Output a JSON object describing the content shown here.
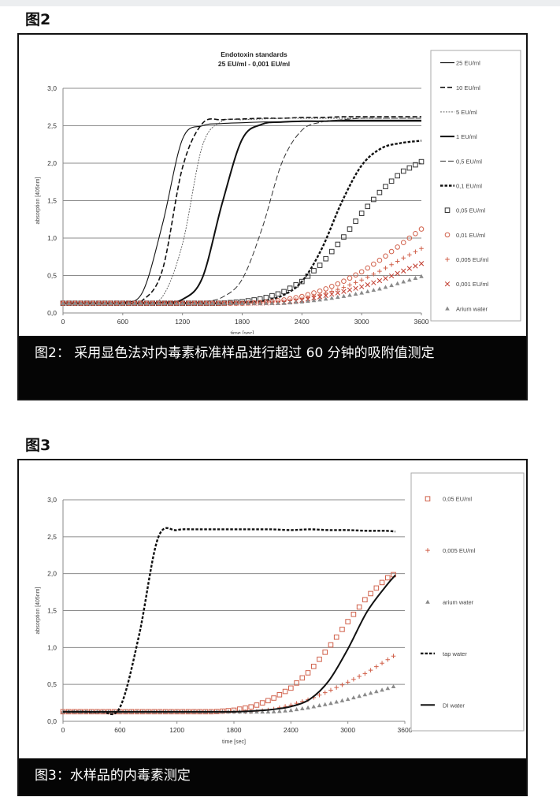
{
  "figures": [
    {
      "label": "图2",
      "caption": "图2： 采用显色法对内毒素标准样品进行超过 60 分钟的吸附值测定"
    },
    {
      "label": "图3",
      "caption": "图3：水样品的内毒素测定"
    }
  ],
  "chart_data": [
    {
      "type": "line",
      "title": "Endotoxin standards",
      "subtitle": "25 EU/ml - 0,001 EU/ml",
      "xlabel": "time [sec]",
      "ylabel": "absorption [405nm]",
      "xlim": [
        0,
        3600
      ],
      "ylim": [
        0,
        3.0
      ],
      "xticks": [
        "0",
        "600",
        "1200",
        "1800",
        "2400",
        "3000",
        "3600"
      ],
      "yticks": [
        "0,0",
        "0,5",
        "1,0",
        "1,5",
        "2,0",
        "2,5",
        "3,0"
      ],
      "grid": "horizontal",
      "legend": "right",
      "x": [
        0,
        200,
        400,
        600,
        800,
        1000,
        1200,
        1400,
        1600,
        1800,
        2000,
        2200,
        2400,
        2600,
        2800,
        3000,
        3200,
        3400,
        3600
      ],
      "series": [
        {
          "name": "25 EU/ml",
          "style": "solid-thin",
          "color": "#111111",
          "values": [
            0.13,
            0.13,
            0.13,
            0.14,
            0.28,
            1.19,
            2.32,
            2.5,
            2.53,
            2.54,
            2.55,
            2.55,
            2.56,
            2.56,
            2.56,
            2.56,
            2.56,
            2.56,
            2.56
          ]
        },
        {
          "name": "10 EU/ml",
          "style": "dashed",
          "color": "#111111",
          "values": [
            0.13,
            0.13,
            0.13,
            0.13,
            0.17,
            0.58,
            1.94,
            2.53,
            2.58,
            2.59,
            2.6,
            2.6,
            2.61,
            2.61,
            2.62,
            2.62,
            2.62,
            2.62,
            2.62
          ]
        },
        {
          "name": "5 EU/ml",
          "style": "dotted-thin",
          "color": "#555555",
          "values": [
            0.13,
            0.13,
            0.13,
            0.13,
            0.14,
            0.22,
            0.92,
            2.23,
            2.56,
            2.58,
            2.59,
            2.6,
            2.6,
            2.6,
            2.6,
            2.6,
            2.6,
            2.6,
            2.6
          ]
        },
        {
          "name": "1 EU/ml",
          "style": "solid-thick",
          "color": "#111111",
          "values": [
            0.13,
            0.13,
            0.13,
            0.13,
            0.13,
            0.14,
            0.18,
            0.47,
            1.47,
            2.32,
            2.52,
            2.55,
            2.56,
            2.56,
            2.57,
            2.57,
            2.57,
            2.57,
            2.57
          ]
        },
        {
          "name": "0,5 EU/ml",
          "style": "dashed-thin",
          "color": "#333333",
          "values": [
            0.13,
            0.13,
            0.13,
            0.13,
            0.13,
            0.13,
            0.14,
            0.15,
            0.21,
            0.45,
            1.13,
            2.01,
            2.44,
            2.55,
            2.58,
            2.6,
            2.6,
            2.6,
            2.6
          ]
        },
        {
          "name": "0,1 EU/ml",
          "style": "dotted-thick",
          "color": "#111111",
          "values": [
            0.13,
            0.13,
            0.13,
            0.13,
            0.13,
            0.13,
            0.13,
            0.13,
            0.13,
            0.14,
            0.16,
            0.23,
            0.42,
            0.86,
            1.48,
            1.97,
            2.2,
            2.27,
            2.3
          ]
        },
        {
          "name": "0,05 EU/ml",
          "style": "marker-square",
          "color": "#333333",
          "values": [
            0.13,
            0.13,
            0.13,
            0.13,
            0.13,
            0.13,
            0.13,
            0.13,
            0.13,
            0.15,
            0.19,
            0.27,
            0.42,
            0.66,
            0.98,
            1.33,
            1.64,
            1.88,
            2.02
          ]
        },
        {
          "name": "0,01 EU/ml",
          "style": "marker-circle",
          "color": "#d0604a",
          "values": [
            0.13,
            0.13,
            0.13,
            0.13,
            0.13,
            0.13,
            0.13,
            0.13,
            0.13,
            0.13,
            0.14,
            0.17,
            0.22,
            0.3,
            0.41,
            0.55,
            0.72,
            0.92,
            1.12
          ]
        },
        {
          "name": "0,005 EU/ml",
          "style": "marker-plus",
          "color": "#d0604a",
          "values": [
            0.13,
            0.13,
            0.13,
            0.13,
            0.13,
            0.13,
            0.13,
            0.13,
            0.13,
            0.13,
            0.13,
            0.15,
            0.19,
            0.25,
            0.33,
            0.44,
            0.57,
            0.72,
            0.86
          ]
        },
        {
          "name": "0,001 EU/ml",
          "style": "marker-x",
          "color": "#c0392b",
          "values": [
            0.13,
            0.13,
            0.13,
            0.13,
            0.13,
            0.13,
            0.13,
            0.13,
            0.13,
            0.13,
            0.13,
            0.14,
            0.17,
            0.22,
            0.28,
            0.35,
            0.44,
            0.55,
            0.66
          ]
        },
        {
          "name": "Arium water",
          "style": "marker-triangle",
          "color": "#8a8a8a",
          "values": [
            0.13,
            0.13,
            0.13,
            0.13,
            0.13,
            0.13,
            0.13,
            0.13,
            0.13,
            0.13,
            0.13,
            0.13,
            0.15,
            0.18,
            0.22,
            0.27,
            0.33,
            0.41,
            0.49
          ]
        }
      ]
    },
    {
      "type": "line",
      "title": "",
      "subtitle": "",
      "xlabel": "time [sec]",
      "ylabel": "absorption [405nm]",
      "xlim": [
        0,
        3600
      ],
      "ylim": [
        0,
        3.0
      ],
      "xticks": [
        "0",
        "600",
        "1200",
        "1800",
        "2400",
        "3000",
        "3600"
      ],
      "yticks": [
        "0,0",
        "0,5",
        "1,0",
        "1,5",
        "2,0",
        "2,5",
        "3,0"
      ],
      "grid": "horizontal",
      "legend": "right",
      "x": [
        0,
        200,
        400,
        600,
        800,
        1000,
        1200,
        1400,
        1600,
        1800,
        2000,
        2200,
        2400,
        2600,
        2800,
        3000,
        3200,
        3400,
        3500
      ],
      "series": [
        {
          "name": "0,05 EU/ml",
          "style": "marker-square",
          "color": "#d0604a",
          "values": [
            0.13,
            0.13,
            0.13,
            0.13,
            0.13,
            0.13,
            0.13,
            0.13,
            0.13,
            0.15,
            0.2,
            0.3,
            0.45,
            0.68,
            1.0,
            1.35,
            1.68,
            1.93,
            2.0
          ]
        },
        {
          "name": "0,005 EU/ml",
          "style": "marker-plus",
          "color": "#d0604a",
          "values": [
            0.13,
            0.13,
            0.13,
            0.13,
            0.13,
            0.13,
            0.13,
            0.13,
            0.13,
            0.13,
            0.13,
            0.16,
            0.22,
            0.3,
            0.41,
            0.53,
            0.66,
            0.82,
            0.9
          ]
        },
        {
          "name": "arium water",
          "style": "marker-triangle",
          "color": "#8a8a8a",
          "values": [
            0.13,
            0.13,
            0.13,
            0.13,
            0.13,
            0.13,
            0.13,
            0.13,
            0.13,
            0.13,
            0.13,
            0.13,
            0.15,
            0.19,
            0.24,
            0.3,
            0.37,
            0.44,
            0.48
          ]
        },
        {
          "name": "tap water",
          "style": "dotted-thick",
          "color": "#111111",
          "values": [
            0.13,
            0.13,
            0.13,
            0.19,
            1.16,
            2.48,
            2.59,
            2.6,
            2.6,
            2.6,
            2.6,
            2.6,
            2.59,
            2.6,
            2.59,
            2.59,
            2.58,
            2.58,
            2.57
          ]
        },
        {
          "name": "DI water",
          "style": "solid-thick",
          "color": "#111111",
          "values": [
            0.13,
            0.13,
            0.13,
            0.13,
            0.13,
            0.13,
            0.13,
            0.13,
            0.13,
            0.13,
            0.14,
            0.16,
            0.2,
            0.3,
            0.55,
            0.98,
            1.48,
            1.83,
            1.98
          ]
        }
      ]
    }
  ]
}
